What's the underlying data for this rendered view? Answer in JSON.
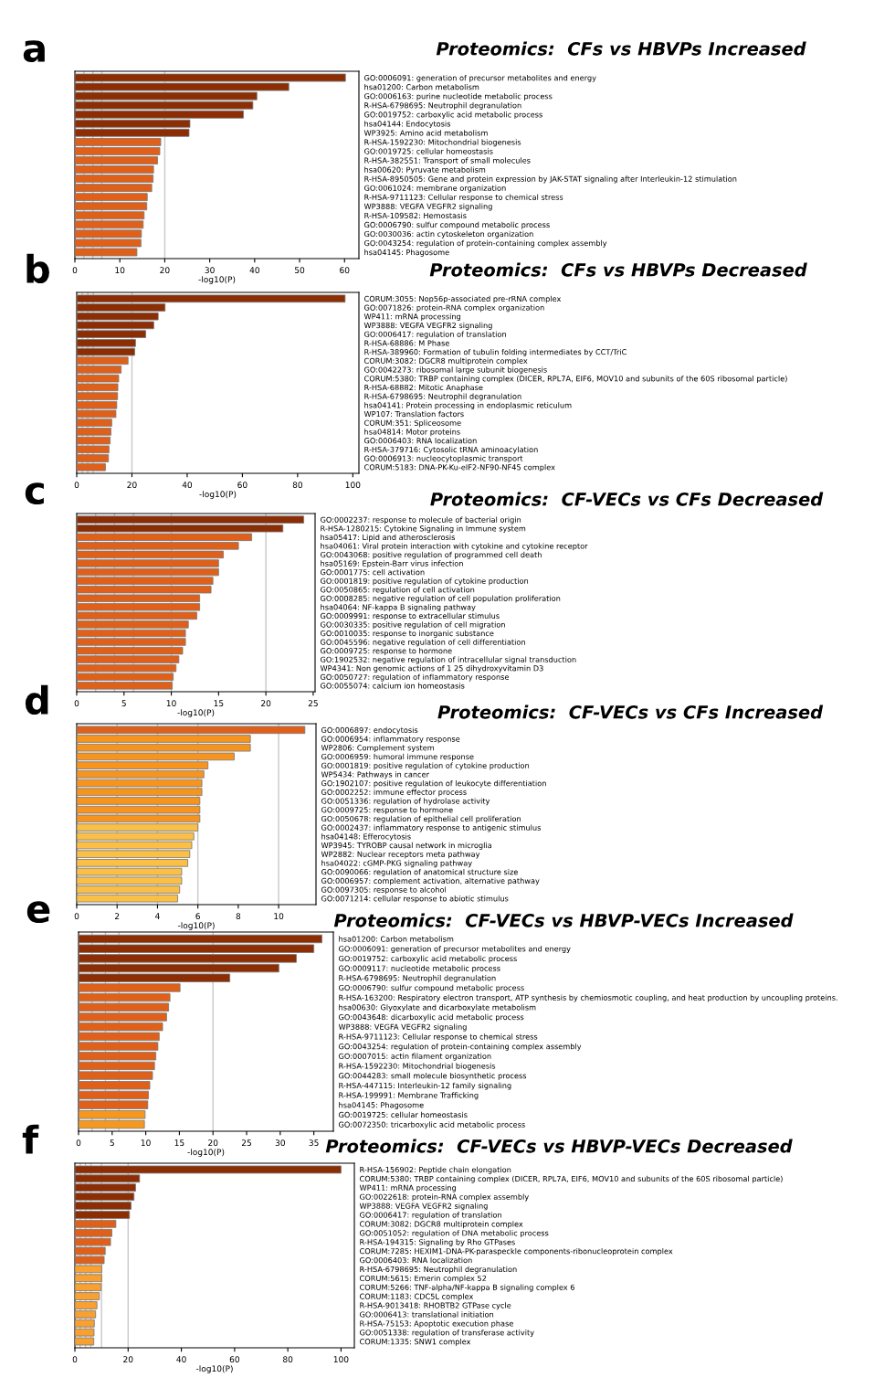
{
  "chart_data": [
    {
      "type": "bar",
      "orientation": "horizontal",
      "title": "Proteomics:  CFs vs HBVPs Increased",
      "annotations": [
        "a"
      ],
      "xlabel": "-log10(P)",
      "xlim": [
        0,
        63.2
      ],
      "xticks": [
        0,
        10,
        20,
        30,
        40,
        50,
        60
      ],
      "categories": [
        "GO:0006091: generation of precursor metabolites and energy",
        "hsa01200: Carbon metabolism",
        "GO:0006163: purine nucleotide metabolic process",
        "R-HSA-6798695: Neutrophil degranulation",
        "GO:0019752: carboxylic acid metabolic process",
        "hsa04144: Endocytosis",
        "WP3925: Amino acid metabolism",
        "R-HSA-1592230: Mitochondrial biogenesis",
        "GO:0019725: cellular homeostasis",
        "R-HSA-382551: Transport of small molecules",
        "hsa00620: Pyruvate metabolism",
        "R-HSA-8950505: Gene and protein expression by JAK-STAT signaling after Interleukin-12 stimulation",
        "GO:0061024: membrane organization",
        "R-HSA-9711123: Cellular response to chemical stress",
        "WP3888: VEGFA VEGFR2 signaling",
        "R-HSA-109582: Hemostasis",
        "GO:0006790: sulfur compound metabolic process",
        "GO:0030036: actin cytoskeleton organization",
        "GO:0043254: regulation of protein-containing complex assembly",
        "hsa04145: Phagosome"
      ],
      "values": [
        60.2,
        47.6,
        40.5,
        39.6,
        37.5,
        25.6,
        25.4,
        19.1,
        18.9,
        18.4,
        17.5,
        17.4,
        17.1,
        16.1,
        16.0,
        15.4,
        15.2,
        14.8,
        14.7,
        13.8
      ],
      "colors": [
        "#8c2d04",
        "#8c2d04",
        "#8c2d04",
        "#8c2d04",
        "#8c2d04",
        "#8c2d04",
        "#8c2d04",
        "#e0601a",
        "#e0601a",
        "#e0601a",
        "#e0601a",
        "#e0601a",
        "#e0601a",
        "#e0601a",
        "#e0601a",
        "#e0601a",
        "#e0601a",
        "#e0601a",
        "#e0601a",
        "#e0601a"
      ],
      "ref_lines": [
        {
          "axis": "x",
          "value": 2,
          "color": "#c8c8c8"
        },
        {
          "axis": "x",
          "value": 4,
          "color": "#c8c8c8"
        },
        {
          "axis": "x",
          "value": 6,
          "color": "#c8c8c8"
        },
        {
          "axis": "x",
          "value": 20,
          "color": "#c8c8c8"
        }
      ]
    },
    {
      "type": "bar",
      "orientation": "horizontal",
      "title": "Proteomics:  CFs vs HBVPs Decreased",
      "annotations": [
        "b"
      ],
      "xlabel": "-log10(P)",
      "xlim": [
        0,
        102.2
      ],
      "xticks": [
        0,
        20,
        40,
        60,
        80,
        100
      ],
      "categories": [
        "CORUM:3055: Nop56p-associated pre-rRNA complex",
        "GO:0071826: protein-RNA complex organization",
        "WP411: mRNA processing",
        "WP3888: VEGFA VEGFR2 signaling",
        "GO:0006417: regulation of translation",
        "R-HSA-68886: M Phase",
        "R-HSA-389960: Formation of tubulin folding intermediates by CCT/TriC",
        "CORUM:3082: DGCR8 multiprotein complex",
        "GO:0042273: ribosomal large subunit biogenesis",
        "CORUM:5380: TRBP containing complex (DICER, RPL7A, EIF6, MOV10 and subunits of the 60S ribosomal particle)",
        "R-HSA-68882: Mitotic Anaphase",
        "R-HSA-6798695: Neutrophil degranulation",
        "hsa04141: Protein processing in endoplasmic reticulum",
        "WP107: Translation factors",
        "CORUM:351: Spliceosome",
        "hsa04814: Motor proteins",
        "GO:0006403: RNA localization",
        "R-HSA-379716: Cytosolic tRNA aminoacylation",
        "GO:0006913: nucleocytoplasmic transport",
        "CORUM:5183: DNA-PK-Ku-eIF2-NF90-NF45 complex"
      ],
      "values": [
        97.2,
        32.0,
        29.5,
        27.9,
        25.0,
        21.3,
        21.0,
        18.6,
        16.1,
        15.2,
        14.9,
        14.8,
        14.5,
        14.2,
        12.7,
        12.4,
        12.1,
        11.7,
        11.5,
        10.4
      ],
      "colors": [
        "#8c2d04",
        "#8c2d04",
        "#8c2d04",
        "#8c2d04",
        "#8c2d04",
        "#8c2d04",
        "#8c2d04",
        "#e0601a",
        "#e0601a",
        "#e0601a",
        "#e0601a",
        "#e0601a",
        "#e0601a",
        "#e0601a",
        "#e0601a",
        "#e0601a",
        "#e0601a",
        "#e0601a",
        "#e0601a",
        "#e0601a"
      ],
      "ref_lines": [
        {
          "axis": "x",
          "value": 2,
          "color": "#c8c8c8"
        },
        {
          "axis": "x",
          "value": 4,
          "color": "#c8c8c8"
        },
        {
          "axis": "x",
          "value": 6,
          "color": "#c8c8c8"
        },
        {
          "axis": "x",
          "value": 20,
          "color": "#c8c8c8"
        }
      ]
    },
    {
      "type": "bar",
      "orientation": "horizontal",
      "title": "Proteomics:  CF-VECs vs CFs Decreased",
      "annotations": [
        "c"
      ],
      "xlabel": "-log10(P)",
      "xlim": [
        0,
        25.2
      ],
      "xticks": [
        0,
        5,
        10,
        15,
        20,
        25
      ],
      "categories": [
        "GO:0002237: response to molecule of bacterial origin",
        "R-HSA-1280215: Cytokine Signaling in Immune system",
        "hsa05417: Lipid and atherosclerosis",
        "hsa04061: Viral protein interaction with cytokine and cytokine receptor",
        "GO:0043068: positive regulation of programmed cell death",
        "hsa05169: Epstein-Barr virus infection",
        "GO:0001775: cell activation",
        "GO:0001819: positive regulation of cytokine production",
        "GO:0050865: regulation of cell activation",
        "GO:0008285: negative regulation of cell population proliferation",
        "hsa04064: NF-kappa B signaling pathway",
        "GO:0009991: response to extracellular stimulus",
        "GO:0030335: positive regulation of cell migration",
        "GO:0010035: response to inorganic substance",
        "GO:0045596: negative regulation of cell differentiation",
        "GO:0009725: response to hormone",
        "GO:1902532: negative regulation of intracellular signal transduction",
        "WP4341: Non genomic actions of 1 25 dihydroxyvitamin D3",
        "GO:0050727: regulation of inflammatory response",
        "GO:0055074: calcium ion homeostasis"
      ],
      "values": [
        24.0,
        21.8,
        18.5,
        17.1,
        15.5,
        15.0,
        15.0,
        14.4,
        14.2,
        13.0,
        13.0,
        12.7,
        11.8,
        11.5,
        11.5,
        11.2,
        10.8,
        10.5,
        10.2,
        10.1
      ],
      "colors": [
        "#8c2d04",
        "#8c2d04",
        "#e0601a",
        "#e0601a",
        "#e0601a",
        "#e0601a",
        "#e0601a",
        "#e0601a",
        "#e0601a",
        "#e0601a",
        "#e0601a",
        "#e0601a",
        "#e0601a",
        "#e0601a",
        "#e0601a",
        "#e0601a",
        "#e0601a",
        "#e0601a",
        "#e0601a",
        "#e0601a"
      ],
      "ref_lines": [
        {
          "axis": "x",
          "value": 2,
          "color": "#c8c8c8"
        },
        {
          "axis": "x",
          "value": 4,
          "color": "#c8c8c8"
        },
        {
          "axis": "x",
          "value": 6,
          "color": "#c8c8c8"
        },
        {
          "axis": "x",
          "value": 10,
          "color": "#c8c8c8"
        },
        {
          "axis": "x",
          "value": 20,
          "color": "#c8c8c8"
        }
      ]
    },
    {
      "type": "bar",
      "orientation": "horizontal",
      "title": "Proteomics:  CF-VECs vs CFs Increased",
      "annotations": [
        "d"
      ],
      "xlabel": "-log10(P)",
      "xlim": [
        0,
        11.85
      ],
      "xticks": [
        0,
        2,
        4,
        6,
        8,
        10
      ],
      "categories": [
        "GO:0006897: endocytosis",
        "GO:0006954: inflammatory response",
        "WP2806: Complement system",
        "GO:0006959: humoral immune response",
        "GO:0001819: positive regulation of cytokine production",
        "WP5434: Pathways in cancer",
        "GO:1902107: positive regulation of leukocyte differentiation",
        "GO:0002252: immune effector process",
        "GO:0051336: regulation of hydrolase activity",
        "GO:0009725: response to hormone",
        "GO:0050678: regulation of epithelial cell proliferation",
        "GO:0002437: inflammatory response to antigenic stimulus",
        "hsa04148: Efferocytosis",
        "WP3945: TYROBP causal network in microglia",
        "WP2882: Nuclear receptors meta pathway",
        "hsa04022: cGMP-PKG signaling pathway",
        "GO:0090066: regulation of anatomical structure size",
        "GO:0006957: complement activation, alternative pathway",
        "GO:0097305: response to alcohol",
        "GO:0071214: cellular response to abiotic stimulus"
      ],
      "values": [
        11.3,
        8.6,
        8.6,
        7.8,
        6.5,
        6.3,
        6.2,
        6.2,
        6.1,
        6.1,
        6.1,
        6.0,
        5.8,
        5.7,
        5.6,
        5.5,
        5.2,
        5.2,
        5.1,
        5.0
      ],
      "colors": [
        "#e0601a",
        "#f7941d",
        "#f7941d",
        "#f7941d",
        "#f7941d",
        "#f7941d",
        "#f7941d",
        "#f7941d",
        "#f7941d",
        "#f7941d",
        "#f7941d",
        "#fbbf45",
        "#fbbf45",
        "#fbbf45",
        "#fbbf45",
        "#fbbf45",
        "#fbbf45",
        "#fbbf45",
        "#fbbf45",
        "#fbbf45"
      ],
      "ref_lines": [
        {
          "axis": "x",
          "value": 2,
          "color": "#c8c8c8"
        },
        {
          "axis": "x",
          "value": 4,
          "color": "#c8c8c8"
        },
        {
          "axis": "x",
          "value": 6,
          "color": "#c8c8c8"
        },
        {
          "axis": "x",
          "value": 10,
          "color": "#c8c8c8"
        }
      ]
    },
    {
      "type": "bar",
      "orientation": "horizontal",
      "title": "Proteomics:  CF-VECs vs HBVP-VECs Increased",
      "annotations": [
        "e"
      ],
      "xlabel": "-log10(P)",
      "xlim": [
        0,
        37.9
      ],
      "xticks": [
        0,
        5,
        10,
        15,
        20,
        25,
        30,
        35
      ],
      "categories": [
        "hsa01200: Carbon metabolism",
        "GO:0006091: generation of precursor metabolites and energy",
        "GO:0019752: carboxylic acid metabolic process",
        "GO:0009117: nucleotide metabolic process",
        "R-HSA-6798695: Neutrophil degranulation",
        "GO:0006790: sulfur compound metabolic process",
        "R-HSA-163200: Respiratory electron transport, ATP synthesis by chemiosmotic coupling, and heat production by uncoupling proteins.",
        "hsa00630: Glyoxylate and dicarboxylate metabolism",
        "GO:0043648: dicarboxylic acid metabolic process",
        "WP3888: VEGFA VEGFR2 signaling",
        "R-HSA-9711123: Cellular response to chemical stress",
        "GO:0043254: regulation of protein-containing complex assembly",
        "GO:0007015: actin filament organization",
        "R-HSA-1592230: Mitochondrial biogenesis",
        "GO:0044283: small molecule biosynthetic process",
        "R-HSA-447115: Interleukin-12 family signaling",
        "R-HSA-199991: Membrane Trafficking",
        "hsa04145: Phagosome",
        "GO:0019725: cellular homeostasis",
        "GO:0072350: tricarboxylic acid metabolic process"
      ],
      "values": [
        36.2,
        35.0,
        32.4,
        29.8,
        22.5,
        15.1,
        13.6,
        13.4,
        13.1,
        12.5,
        12.0,
        11.8,
        11.5,
        11.3,
        11.0,
        10.6,
        10.4,
        10.3,
        9.9,
        9.8
      ],
      "colors": [
        "#8c2d04",
        "#8c2d04",
        "#8c2d04",
        "#8c2d04",
        "#8c2d04",
        "#e0601a",
        "#e0601a",
        "#e0601a",
        "#e0601a",
        "#e0601a",
        "#e0601a",
        "#e0601a",
        "#e0601a",
        "#e0601a",
        "#e0601a",
        "#e0601a",
        "#e0601a",
        "#e0601a",
        "#f7981d",
        "#f7981d"
      ],
      "ref_lines": [
        {
          "axis": "x",
          "value": 2,
          "color": "#c8c8c8"
        },
        {
          "axis": "x",
          "value": 4,
          "color": "#c8c8c8"
        },
        {
          "axis": "x",
          "value": 6,
          "color": "#c8c8c8"
        },
        {
          "axis": "x",
          "value": 20,
          "color": "#c8c8c8"
        }
      ]
    },
    {
      "type": "bar",
      "orientation": "horizontal",
      "title": "Proteomics:  CF-VECs vs HBVP-VECs Decreased",
      "annotations": [
        "f"
      ],
      "xlabel": "-log10(P)",
      "xlim": [
        0,
        105
      ],
      "xticks": [
        0,
        20,
        40,
        60,
        80,
        100
      ],
      "categories": [
        "R-HSA-156902: Peptide chain elongation",
        "CORUM:5380: TRBP containing complex (DICER, RPL7A, EIF6, MOV10 and subunits of the 60S ribosomal particle)",
        "WP411: mRNA processing",
        "GO:0022618: protein-RNA complex assembly",
        "WP3888: VEGFA VEGFR2 signaling",
        "GO:0006417: regulation of translation",
        "CORUM:3082: DGCR8 multiprotein complex",
        "GO:0051052: regulation of DNA metabolic process",
        "R-HSA-194315: Signaling by Rho GTPases",
        "CORUM:7285: HEXIM1-DNA-PK-paraspeckle components-ribonucleoprotein complex",
        "GO:0006403: RNA localization",
        "R-HSA-6798695: Neutrophil degranulation",
        "CORUM:5615: Emerin complex 52",
        "CORUM:5266: TNF-alpha/NF-kappa B signaling complex 6",
        "CORUM:1183: CDC5L complex",
        "R-HSA-9013418: RHOBTB2 GTPase cycle",
        "GO:0006413: translational initiation",
        "R-HSA-75153: Apoptotic execution phase",
        "GO:0051338: regulation of transferase activity",
        "CORUM:1335: SNW1 complex"
      ],
      "values": [
        100,
        24.3,
        22.8,
        22.2,
        21.1,
        20.5,
        15.4,
        13.9,
        13.4,
        11.4,
        11.0,
        10.1,
        10.1,
        9.9,
        9.2,
        8.3,
        7.8,
        7.3,
        7.2,
        7.1
      ],
      "colors": [
        "#8c2d04",
        "#8c2d04",
        "#8c2d04",
        "#8c2d04",
        "#8c2d04",
        "#8c2d04",
        "#e0601a",
        "#e0601a",
        "#e0601a",
        "#e0601a",
        "#e0601a",
        "#f8a030",
        "#f8a030",
        "#f8a030",
        "#f8a030",
        "#f8a030",
        "#f8a030",
        "#f8a030",
        "#f8a030",
        "#f8a030"
      ],
      "ref_lines": [
        {
          "axis": "x",
          "value": 2,
          "color": "#c8c8c8"
        },
        {
          "axis": "x",
          "value": 4,
          "color": "#c8c8c8"
        },
        {
          "axis": "x",
          "value": 6,
          "color": "#c8c8c8"
        },
        {
          "axis": "x",
          "value": 10,
          "color": "#c8c8c8"
        },
        {
          "axis": "x",
          "value": 20,
          "color": "#c8c8c8"
        }
      ]
    }
  ]
}
